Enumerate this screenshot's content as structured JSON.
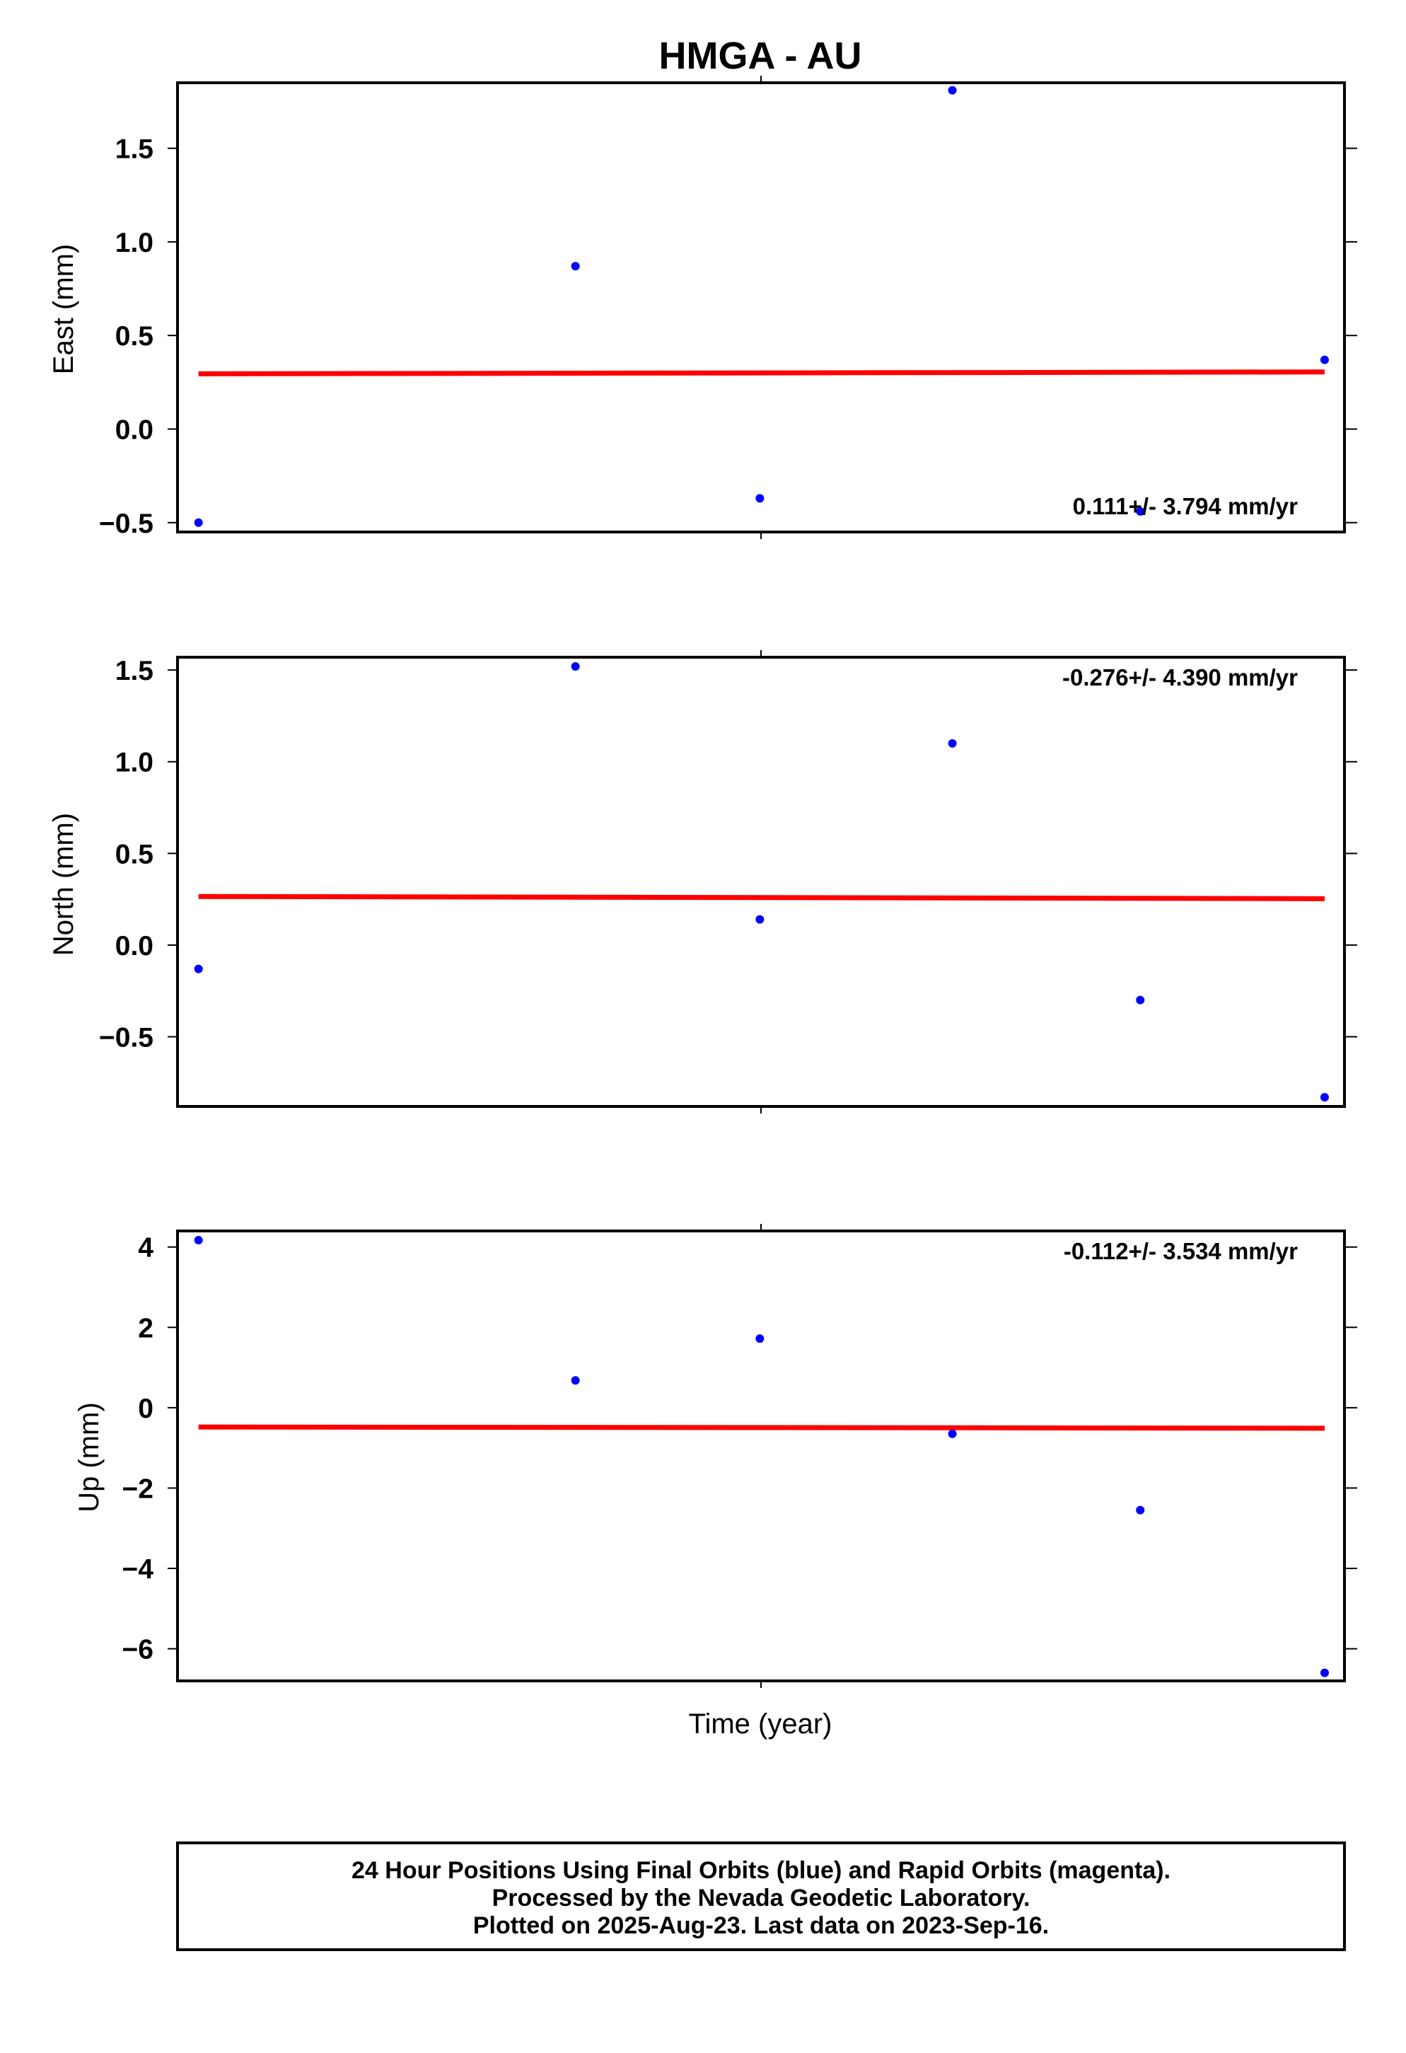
{
  "title": "HMGA - AU",
  "xlabel": "Time (year)",
  "colors": {
    "points": "#0000ff",
    "fit": "#ff0000",
    "frame": "#000000"
  },
  "footer": {
    "line1": "24 Hour Positions Using Final Orbits (blue) and Rapid Orbits (magenta).",
    "line2": "Processed by the Nevada Geodetic Laboratory.",
    "line3": "Plotted on 2025-Aug-23. Last data on 2023-Sep-16."
  },
  "chart_data": [
    {
      "type": "scatter",
      "ylabel": "East (mm)",
      "ylim": [
        -0.55,
        1.85
      ],
      "yticks": [
        "1.5",
        "1.0",
        "0.5",
        "0.0",
        "−0.5"
      ],
      "ytick_values": [
        1.5,
        1.0,
        0.5,
        0.0,
        -0.5
      ],
      "xlim": [
        0,
        1
      ],
      "points": [
        {
          "x": 0.018,
          "y": -0.5
        },
        {
          "x": 0.341,
          "y": 0.87
        },
        {
          "x": 0.499,
          "y": -0.37
        },
        {
          "x": 0.664,
          "y": 1.81
        },
        {
          "x": 0.825,
          "y": -0.44
        },
        {
          "x": 0.983,
          "y": 0.37
        }
      ],
      "fit_line": {
        "x": [
          0.018,
          0.983
        ],
        "y": [
          0.295,
          0.305
        ]
      },
      "rate": "0.111+/- 3.794 mm/yr",
      "rate_position": "bottom-right"
    },
    {
      "type": "scatter",
      "ylabel": "North (mm)",
      "ylim": [
        -0.88,
        1.57
      ],
      "yticks": [
        "1.5",
        "1.0",
        "0.5",
        "0.0",
        "−0.5"
      ],
      "ytick_values": [
        1.5,
        1.0,
        0.5,
        0.0,
        -0.5
      ],
      "xlim": [
        0,
        1
      ],
      "points": [
        {
          "x": 0.018,
          "y": -0.13
        },
        {
          "x": 0.341,
          "y": 1.52
        },
        {
          "x": 0.499,
          "y": 0.14
        },
        {
          "x": 0.664,
          "y": 1.1
        },
        {
          "x": 0.825,
          "y": -0.3
        },
        {
          "x": 0.983,
          "y": -0.83
        }
      ],
      "fit_line": {
        "x": [
          0.018,
          0.983
        ],
        "y": [
          0.265,
          0.253
        ]
      },
      "rate": "-0.276+/- 4.390 mm/yr",
      "rate_position": "top-right"
    },
    {
      "type": "scatter",
      "ylabel": "Up (mm)",
      "ylim": [
        -6.8,
        4.4
      ],
      "yticks": [
        "4",
        "2",
        "0",
        "−2",
        "−4",
        "−6"
      ],
      "ytick_values": [
        4,
        2,
        0,
        -2,
        -4,
        -6
      ],
      "xlim": [
        0,
        1
      ],
      "points": [
        {
          "x": 0.018,
          "y": 4.17
        },
        {
          "x": 0.341,
          "y": 0.68
        },
        {
          "x": 0.499,
          "y": 1.72
        },
        {
          "x": 0.664,
          "y": -0.65
        },
        {
          "x": 0.825,
          "y": -2.55
        },
        {
          "x": 0.983,
          "y": -6.6
        }
      ],
      "fit_line": {
        "x": [
          0.018,
          0.983
        ],
        "y": [
          -0.48,
          -0.51
        ]
      },
      "rate": "-0.112+/- 3.534 mm/yr",
      "rate_position": "top-right"
    }
  ]
}
